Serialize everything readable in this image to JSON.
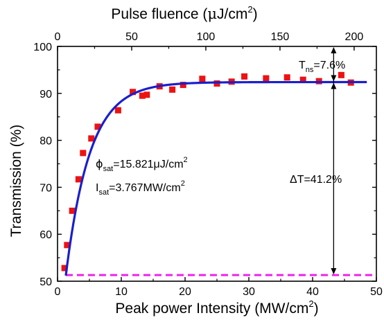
{
  "chart_data": {
    "type": "scatter",
    "title": "",
    "xlabel": {
      "main": "Peak power Intensity (MW/cm",
      "sup": "2",
      "tail": ")"
    },
    "ylabel": "Transmission (%)",
    "x2label": {
      "main": "Pulse fluence (",
      "mu": "μ",
      "unit": "J/cm",
      "sup": "2",
      "tail": ")"
    },
    "xlim": [
      0,
      50
    ],
    "ylim": [
      50,
      100
    ],
    "x2lim": [
      0,
      215
    ],
    "xticks": [
      0,
      10,
      20,
      30,
      40,
      50
    ],
    "yticks": [
      50,
      60,
      70,
      80,
      90,
      100
    ],
    "x2ticks": [
      0,
      50,
      100,
      150,
      200
    ],
    "grid": false,
    "series": [
      {
        "kind": "scatter",
        "color": "#ee1111",
        "x": [
          1.1,
          1.5,
          2.3,
          3.3,
          4.0,
          5.3,
          6.3,
          9.5,
          11.8,
          13.3,
          14.0,
          16.0,
          18.0,
          19.7,
          22.7,
          25.0,
          27.3,
          29.3,
          32.7,
          36.0,
          38.5,
          41.0,
          44.5,
          46.0
        ],
        "y": [
          52.8,
          57.7,
          65.0,
          71.7,
          77.3,
          80.4,
          82.9,
          86.4,
          90.3,
          89.5,
          89.7,
          91.5,
          90.8,
          91.8,
          93.1,
          92.1,
          92.5,
          93.6,
          93.2,
          93.4,
          92.9,
          92.6,
          93.9,
          92.3
        ]
      },
      {
        "kind": "fit",
        "color": "#1a1fcc",
        "x_start": 1.3,
        "x_end": 48.5,
        "T0": 51.2,
        "dT": 41.2,
        "Isat": 3.767
      },
      {
        "kind": "hline",
        "color": "#ee22ee",
        "y": 51.3
      }
    ],
    "annotations": {
      "tns": {
        "main": "T",
        "sub": "ns",
        "tail": "=7.6%"
      },
      "dt": "ΔT=41.2%",
      "phi": {
        "main": "ϕ",
        "sub": "sat",
        "tail": "=15.821μJ/cm",
        "sup": "2"
      },
      "isat": {
        "main": "I",
        "sub": "sat",
        "tail": "=3.767MW/cm",
        "sup": "2"
      },
      "arrow_x": 43.3,
      "arrow_top_y": 100,
      "arrow_mid_y": 92.4,
      "arrow_bottom_y": 51.3
    }
  }
}
